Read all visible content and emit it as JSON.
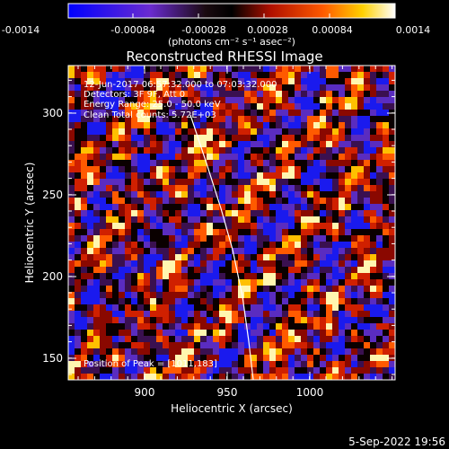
{
  "colorbar": {
    "ticks": [
      "-0.0014",
      "-0.00084",
      "-0.00028",
      "0.00028",
      "0.00084",
      "0.0014"
    ],
    "units": "(photons cm⁻² s⁻¹ asec⁻²)"
  },
  "image": {
    "title": "Reconstructed RHESSI Image",
    "info_lines": [
      "12-Jun-2017 06:57:32.000 to 07:03:32.000",
      "Detectors: 3F 9F, Att 0",
      "Energy Range: 25.0 - 50.0 keV",
      "Clean     Total counts: 5.72E+03"
    ],
    "peak_label": "Position of Peak = [1011,183]"
  },
  "axes": {
    "xlabel": "Heliocentric X (arcsec)",
    "ylabel": "Heliocentric Y (arcsec)",
    "xticks": [
      "900",
      "950",
      "1000"
    ],
    "yticks": [
      "150",
      "200",
      "250",
      "300"
    ],
    "xlim": [
      861,
      1042
    ],
    "ylim": [
      136,
      322
    ]
  },
  "footer": {
    "timestamp": "5-Sep-2022 19:56"
  },
  "colors": {
    "background": "#000000",
    "limb_line": "#ffffff"
  }
}
